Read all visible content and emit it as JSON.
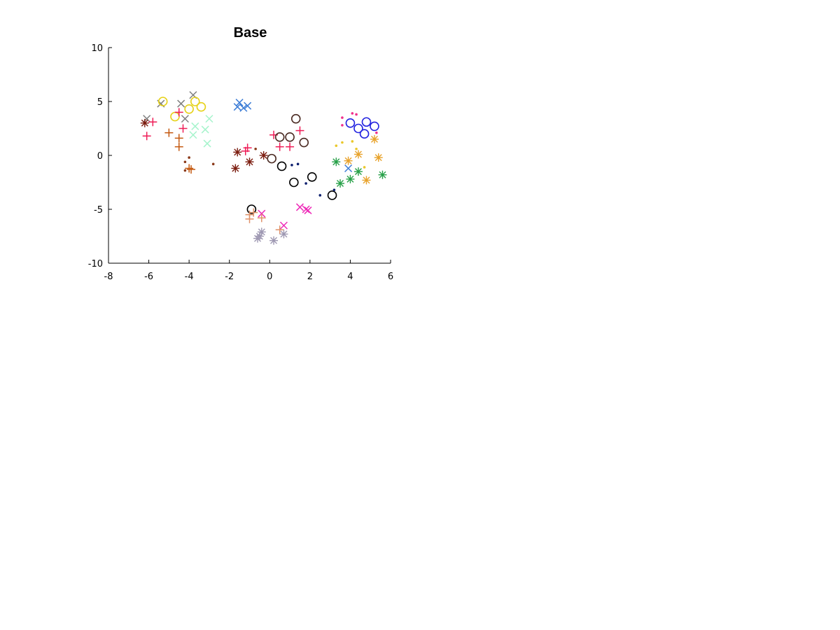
{
  "chart_data": {
    "type": "scatter",
    "title": "Base",
    "xlabel": "",
    "ylabel": "",
    "xlim": [
      -8,
      6
    ],
    "ylim": [
      -10,
      10
    ],
    "xticks": [
      -8,
      -6,
      -4,
      -2,
      0,
      2,
      4,
      6
    ],
    "yticks": [
      -10,
      -5,
      0,
      5,
      10
    ],
    "grid": false,
    "legend": "none",
    "series": [
      {
        "marker": "x",
        "color": "#7f7f7f",
        "points": [
          [
            -6.1,
            3.4
          ],
          [
            -5.4,
            4.8
          ],
          [
            -4.4,
            4.8
          ],
          [
            -3.8,
            5.6
          ],
          [
            -4.2,
            3.4
          ]
        ]
      },
      {
        "marker": "o",
        "color": "#e6d21a",
        "points": [
          [
            -5.3,
            5.0
          ],
          [
            -4.7,
            3.6
          ],
          [
            -4.0,
            4.3
          ],
          [
            -3.7,
            5.0
          ],
          [
            -3.4,
            4.5
          ]
        ]
      },
      {
        "marker": "*",
        "color": "#7b1c0f",
        "points": [
          [
            -6.2,
            3.0
          ],
          [
            -1.6,
            0.3
          ],
          [
            -1.7,
            -1.2
          ],
          [
            -1.0,
            -0.6
          ],
          [
            -0.3,
            0.0
          ]
        ]
      },
      {
        "marker": "+",
        "color": "#ee1c56",
        "points": [
          [
            -5.8,
            3.1
          ],
          [
            -6.1,
            1.8
          ],
          [
            -4.5,
            4.0
          ],
          [
            -4.3,
            2.5
          ],
          [
            -1.2,
            0.4
          ],
          [
            -1.1,
            0.7
          ],
          [
            0.2,
            1.9
          ],
          [
            0.5,
            0.8
          ],
          [
            1.0,
            0.8
          ],
          [
            1.5,
            2.3
          ]
        ]
      },
      {
        "marker": "+",
        "color": "#c4580f",
        "points": [
          [
            -5.0,
            2.1
          ],
          [
            -4.5,
            1.6
          ],
          [
            -4.5,
            0.8
          ],
          [
            -4.0,
            -1.2
          ],
          [
            -3.9,
            -1.3
          ]
        ]
      },
      {
        "marker": "x",
        "color": "#a6f4cc",
        "points": [
          [
            -3.7,
            2.7
          ],
          [
            -3.8,
            1.9
          ],
          [
            -3.2,
            2.4
          ],
          [
            -3.0,
            3.4
          ],
          [
            -3.1,
            1.1
          ]
        ]
      },
      {
        "marker": ".",
        "color": "#8b3a1a",
        "points": [
          [
            -4.2,
            -0.6
          ],
          [
            -4.0,
            -0.2
          ],
          [
            -4.2,
            -1.4
          ],
          [
            -2.8,
            -0.8
          ],
          [
            -0.7,
            0.6
          ]
        ]
      },
      {
        "marker": "x",
        "color": "#3d7dd6",
        "points": [
          [
            -1.6,
            4.5
          ],
          [
            -1.5,
            4.9
          ],
          [
            -1.3,
            4.4
          ],
          [
            -1.1,
            4.6
          ],
          [
            3.9,
            -1.2
          ]
        ]
      },
      {
        "marker": "o",
        "color": "#4a2a22",
        "points": [
          [
            0.5,
            1.7
          ],
          [
            1.0,
            1.7
          ],
          [
            1.3,
            3.4
          ],
          [
            1.7,
            1.2
          ],
          [
            0.1,
            -0.3
          ]
        ]
      },
      {
        "marker": "o",
        "color": "#000000",
        "points": [
          [
            0.6,
            -1.0
          ],
          [
            1.2,
            -2.5
          ],
          [
            2.1,
            -2.0
          ],
          [
            3.1,
            -3.7
          ],
          [
            -0.9,
            -5.0
          ]
        ]
      },
      {
        "marker": ".",
        "color": "#0d1f6e",
        "points": [
          [
            1.1,
            -0.9
          ],
          [
            1.4,
            -0.8
          ],
          [
            1.8,
            -2.6
          ],
          [
            2.5,
            -3.7
          ],
          [
            3.2,
            -3.2
          ]
        ]
      },
      {
        "marker": "x",
        "color": "#ee2bb8",
        "points": [
          [
            -0.4,
            -5.4
          ],
          [
            0.7,
            -6.5
          ],
          [
            1.5,
            -4.8
          ],
          [
            1.8,
            -5.0
          ],
          [
            1.9,
            -5.1
          ]
        ]
      },
      {
        "marker": "+",
        "color": "#e0926a",
        "points": [
          [
            -1.0,
            -5.5
          ],
          [
            -1.0,
            -5.9
          ],
          [
            -0.4,
            -5.8
          ],
          [
            0.5,
            -6.9
          ],
          [
            -0.8,
            -5.3
          ]
        ]
      },
      {
        "marker": "*",
        "color": "#9e98b2",
        "points": [
          [
            -0.6,
            -7.7
          ],
          [
            -0.5,
            -7.5
          ],
          [
            -0.4,
            -7.1
          ],
          [
            0.2,
            -7.9
          ],
          [
            0.7,
            -7.3
          ]
        ]
      },
      {
        "marker": ".",
        "color": "#f0308c",
        "points": [
          [
            3.6,
            3.5
          ],
          [
            4.1,
            3.9
          ],
          [
            4.3,
            3.8
          ],
          [
            3.6,
            2.8
          ],
          [
            5.3,
            2.1
          ]
        ]
      },
      {
        "marker": "o",
        "color": "#2323e0",
        "points": [
          [
            4.0,
            3.0
          ],
          [
            4.4,
            2.5
          ],
          [
            4.8,
            3.1
          ],
          [
            4.7,
            2.0
          ],
          [
            5.2,
            2.7
          ]
        ]
      },
      {
        "marker": ".",
        "color": "#eac82a",
        "points": [
          [
            3.3,
            0.9
          ],
          [
            3.6,
            1.2
          ],
          [
            4.1,
            1.3
          ],
          [
            4.3,
            0.6
          ],
          [
            4.7,
            -1.1
          ]
        ]
      },
      {
        "marker": "*",
        "color": "#e8a22a",
        "points": [
          [
            3.9,
            -0.5
          ],
          [
            4.4,
            0.1
          ],
          [
            4.8,
            -2.3
          ],
          [
            5.2,
            1.5
          ],
          [
            5.4,
            -0.2
          ]
        ]
      },
      {
        "marker": "*",
        "color": "#27a048",
        "points": [
          [
            3.3,
            -0.6
          ],
          [
            3.5,
            -2.6
          ],
          [
            4.0,
            -2.2
          ],
          [
            4.4,
            -1.5
          ],
          [
            5.6,
            -1.8
          ]
        ]
      }
    ]
  }
}
